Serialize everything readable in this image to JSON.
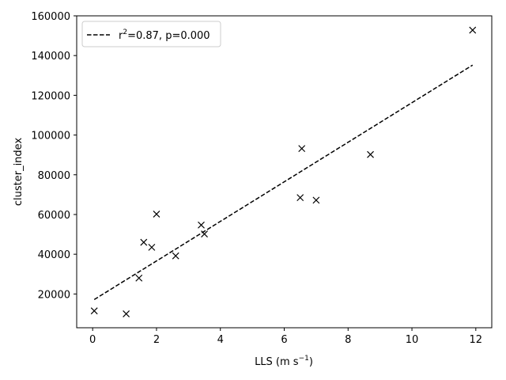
{
  "chart_data": {
    "type": "scatter",
    "xlabel": "LLS (m s",
    "xlabel_sup": "−1",
    "xlabel_close": ")",
    "ylabel": "cluster_index",
    "xlim": [
      -0.5,
      12.5
    ],
    "ylim": [
      3000,
      160000
    ],
    "xticks": [
      0,
      2,
      4,
      6,
      8,
      10,
      12
    ],
    "yticks": [
      20000,
      40000,
      60000,
      80000,
      100000,
      120000,
      140000,
      160000
    ],
    "grid": false,
    "legend_placement": "top-left",
    "legend": {
      "prefix": "r",
      "sup": "2",
      "suffix": "=0.87, p=0.000"
    },
    "points": [
      {
        "x": 0.05,
        "y": 11500
      },
      {
        "x": 1.05,
        "y": 10000
      },
      {
        "x": 1.45,
        "y": 28000
      },
      {
        "x": 1.6,
        "y": 46000
      },
      {
        "x": 1.85,
        "y": 43500
      },
      {
        "x": 2.0,
        "y": 60200
      },
      {
        "x": 2.6,
        "y": 39200
      },
      {
        "x": 3.4,
        "y": 54700
      },
      {
        "x": 3.5,
        "y": 50200
      },
      {
        "x": 6.5,
        "y": 68500
      },
      {
        "x": 6.55,
        "y": 93200
      },
      {
        "x": 7.0,
        "y": 67200
      },
      {
        "x": 8.7,
        "y": 90200
      },
      {
        "x": 11.9,
        "y": 152800
      }
    ],
    "fit_line": [
      {
        "x": 0.05,
        "y": 17200
      },
      {
        "x": 11.9,
        "y": 135200
      }
    ]
  }
}
